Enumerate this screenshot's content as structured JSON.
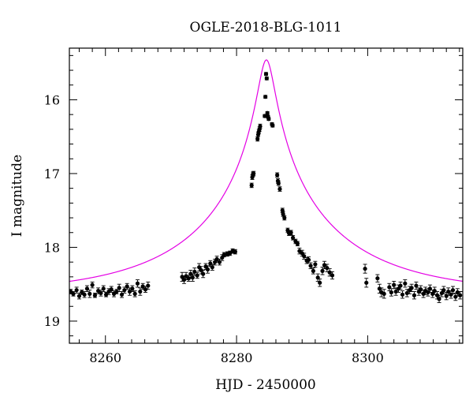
{
  "chart_data": {
    "type": "scatter",
    "title": "OGLE-2018-BLG-1011",
    "xlabel": "HJD - 2450000",
    "ylabel": "I magnitude",
    "xlim": [
      8254.5,
      8314.5
    ],
    "ylim": [
      19.3,
      15.3
    ],
    "y_inverted": true,
    "x_ticks": [
      8260,
      8280,
      8300
    ],
    "y_ticks": [
      16,
      17,
      18,
      19
    ],
    "x_minor_step": 2,
    "y_minor_step": 0.2,
    "grid": false,
    "colors": {
      "data": "#000000",
      "model": "#e400e4"
    },
    "model": {
      "name": "",
      "baseline_mag": 18.63,
      "t0": 8284.55,
      "tE": 22.0,
      "u0": 0.054,
      "blend_fraction": 1.0
    },
    "series": [
      {
        "name": "",
        "x": [
          8254.7,
          8255.1,
          8255.6,
          8256.0,
          8256.4,
          8256.8,
          8257.2,
          8257.6,
          8258.0,
          8258.4,
          8258.9,
          8259.3,
          8259.7,
          8260.1,
          8260.5,
          8260.9,
          8261.3,
          8261.7,
          8262.1,
          8262.5,
          8262.9,
          8263.3,
          8263.7,
          8264.1,
          8264.5,
          8264.9,
          8265.3,
          8265.7,
          8266.1,
          8266.5,
          8271.7,
          8272.0,
          8272.3,
          8272.7,
          8273.0,
          8273.3,
          8273.6,
          8274.0,
          8274.3,
          8274.6,
          8274.9,
          8275.3,
          8275.6,
          8276.0,
          8276.3,
          8276.7,
          8277.0,
          8277.4,
          8277.8,
          8278.1,
          8278.6,
          8279.0,
          8279.4,
          8279.8,
          8282.3,
          8282.4,
          8282.5,
          8282.6,
          8283.2,
          8283.3,
          8283.4,
          8283.5,
          8283.6,
          8284.3,
          8284.4,
          8284.5,
          8284.6,
          8284.7,
          8284.8,
          8284.9,
          8285.4,
          8285.5,
          8286.2,
          8286.3,
          8286.4,
          8286.6,
          8287.0,
          8287.1,
          8287.3,
          8287.8,
          8288.0,
          8288.3,
          8288.6,
          8289.0,
          8289.3,
          8289.6,
          8290.0,
          8290.3,
          8290.7,
          8291.0,
          8291.3,
          8291.7,
          8292.0,
          8292.4,
          8292.7,
          8293.1,
          8293.4,
          8293.8,
          8294.2,
          8294.6,
          8299.6,
          8299.8,
          8301.5,
          8301.8,
          8302.1,
          8302.5,
          8303.3,
          8303.6,
          8304.0,
          8304.3,
          8304.7,
          8305.0,
          8305.3,
          8305.7,
          8306.0,
          8306.4,
          8306.7,
          8307.1,
          8307.4,
          8307.8,
          8308.1,
          8308.5,
          8308.8,
          8309.2,
          8309.5,
          8309.9,
          8310.2,
          8310.6,
          8310.9,
          8311.3,
          8311.6,
          8312.0,
          8312.3,
          8312.7,
          8313.0,
          8313.4,
          8313.7,
          8314.1
        ],
        "y": [
          18.6,
          18.63,
          18.58,
          18.66,
          18.61,
          18.64,
          18.56,
          18.63,
          18.51,
          18.65,
          18.59,
          18.62,
          18.56,
          18.64,
          18.6,
          18.57,
          18.63,
          18.6,
          18.55,
          18.64,
          18.58,
          18.53,
          18.6,
          18.56,
          18.63,
          18.49,
          18.6,
          18.53,
          18.57,
          18.52,
          18.4,
          18.44,
          18.39,
          18.42,
          18.36,
          18.41,
          18.33,
          18.38,
          18.27,
          18.31,
          18.36,
          18.26,
          18.3,
          18.22,
          18.27,
          18.2,
          18.16,
          18.2,
          18.14,
          18.1,
          18.09,
          18.08,
          18.05,
          18.06,
          17.16,
          17.05,
          17.01,
          17.0,
          16.53,
          16.47,
          16.43,
          16.4,
          16.36,
          16.22,
          15.96,
          15.65,
          15.71,
          16.18,
          16.23,
          16.26,
          16.33,
          16.35,
          17.02,
          17.1,
          17.13,
          17.21,
          17.5,
          17.55,
          17.6,
          17.77,
          17.81,
          17.8,
          17.87,
          17.92,
          17.95,
          18.05,
          18.08,
          18.12,
          18.18,
          18.17,
          18.25,
          18.32,
          18.23,
          18.41,
          18.48,
          18.32,
          18.24,
          18.28,
          18.34,
          18.38,
          18.29,
          18.48,
          18.42,
          18.56,
          18.61,
          18.63,
          18.54,
          18.61,
          18.51,
          18.6,
          18.56,
          18.52,
          18.64,
          18.49,
          18.62,
          18.58,
          18.55,
          18.65,
          18.52,
          18.6,
          18.57,
          18.63,
          18.59,
          18.61,
          18.56,
          18.63,
          18.59,
          18.65,
          18.7,
          18.62,
          18.58,
          18.66,
          18.6,
          18.64,
          18.58,
          18.67,
          18.61,
          18.65
        ],
        "err": [
          0.03,
          0.03,
          0.04,
          0.04,
          0.03,
          0.04,
          0.04,
          0.05,
          0.04,
          0.03,
          0.04,
          0.04,
          0.04,
          0.03,
          0.04,
          0.04,
          0.04,
          0.03,
          0.05,
          0.04,
          0.04,
          0.04,
          0.05,
          0.04,
          0.04,
          0.05,
          0.05,
          0.04,
          0.04,
          0.05,
          0.06,
          0.05,
          0.05,
          0.04,
          0.05,
          0.05,
          0.05,
          0.04,
          0.05,
          0.05,
          0.05,
          0.04,
          0.05,
          0.04,
          0.04,
          0.04,
          0.04,
          0.04,
          0.04,
          0.03,
          0.03,
          0.03,
          0.03,
          0.03,
          0.03,
          0.03,
          0.03,
          0.03,
          0.03,
          0.03,
          0.03,
          0.03,
          0.03,
          0.02,
          0.02,
          0.02,
          0.02,
          0.02,
          0.02,
          0.02,
          0.02,
          0.02,
          0.03,
          0.03,
          0.03,
          0.03,
          0.03,
          0.03,
          0.03,
          0.03,
          0.03,
          0.03,
          0.03,
          0.03,
          0.03,
          0.04,
          0.04,
          0.04,
          0.04,
          0.04,
          0.04,
          0.04,
          0.04,
          0.05,
          0.05,
          0.05,
          0.05,
          0.05,
          0.05,
          0.05,
          0.06,
          0.06,
          0.05,
          0.06,
          0.06,
          0.06,
          0.05,
          0.05,
          0.05,
          0.05,
          0.05,
          0.05,
          0.05,
          0.05,
          0.05,
          0.05,
          0.05,
          0.05,
          0.05,
          0.05,
          0.05,
          0.05,
          0.05,
          0.05,
          0.05,
          0.05,
          0.05,
          0.05,
          0.05,
          0.05,
          0.05,
          0.05,
          0.05,
          0.05,
          0.05,
          0.05,
          0.05,
          0.05
        ]
      }
    ]
  }
}
